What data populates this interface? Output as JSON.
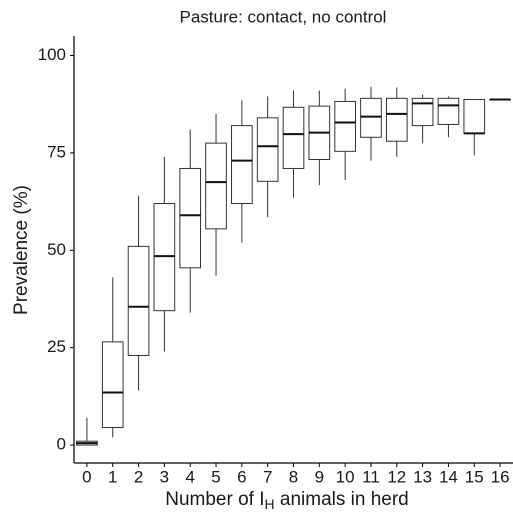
{
  "chart_data": {
    "type": "box",
    "title": "Pasture: contact, no control",
    "y_label": "Prevalence (%)",
    "x_label_parts": [
      "Number of I",
      "H",
      " animals in herd"
    ],
    "categories": [
      "0",
      "1",
      "2",
      "3",
      "4",
      "5",
      "6",
      "7",
      "8",
      "9",
      "10",
      "11",
      "12",
      "13",
      "14",
      "15",
      "16"
    ],
    "boxes": [
      {
        "min": 0,
        "q1": 0,
        "median": 0.5,
        "q3": 1,
        "max": 7
      },
      {
        "min": 2,
        "q1": 4.5,
        "median": 13.5,
        "q3": 26.5,
        "max": 43
      },
      {
        "min": 14,
        "q1": 23,
        "median": 35.5,
        "q3": 51,
        "max": 64
      },
      {
        "min": 24,
        "q1": 34.5,
        "median": 48.5,
        "q3": 62,
        "max": 74
      },
      {
        "min": 34,
        "q1": 45.5,
        "median": 59,
        "q3": 71,
        "max": 81
      },
      {
        "min": 43.5,
        "q1": 55.5,
        "median": 67.5,
        "q3": 77.5,
        "max": 85
      },
      {
        "min": 52,
        "q1": 62,
        "median": 73,
        "q3": 82,
        "max": 88.5
      },
      {
        "min": 58.5,
        "q1": 67.7,
        "median": 76.7,
        "q3": 84,
        "max": 89.5
      },
      {
        "min": 63.5,
        "q1": 71,
        "median": 79.8,
        "q3": 86.7,
        "max": 91
      },
      {
        "min": 66.7,
        "q1": 73.3,
        "median": 80.2,
        "q3": 87,
        "max": 91
      },
      {
        "min": 68,
        "q1": 75.4,
        "median": 82.8,
        "q3": 88.2,
        "max": 91.5
      },
      {
        "min": 73,
        "q1": 79,
        "median": 84.3,
        "q3": 89,
        "max": 92
      },
      {
        "min": 74,
        "q1": 78,
        "median": 85,
        "q3": 89,
        "max": 91.8
      },
      {
        "min": 77.5,
        "q1": 82,
        "median": 87.7,
        "q3": 89,
        "max": 90
      },
      {
        "min": 79,
        "q1": 82.3,
        "median": 87.2,
        "q3": 89,
        "max": 89.5
      },
      {
        "min": 74.3,
        "q1": 80,
        "median": 80,
        "q3": 88.7,
        "max": 88.7
      },
      {
        "min": 88.7,
        "q1": 88.7,
        "median": 88.7,
        "q3": 88.7,
        "max": 88.7
      }
    ],
    "color": "#333333",
    "ylim": [
      -4.6,
      105
    ],
    "yticks": [
      0,
      25,
      50,
      75,
      100
    ],
    "grid": false
  }
}
